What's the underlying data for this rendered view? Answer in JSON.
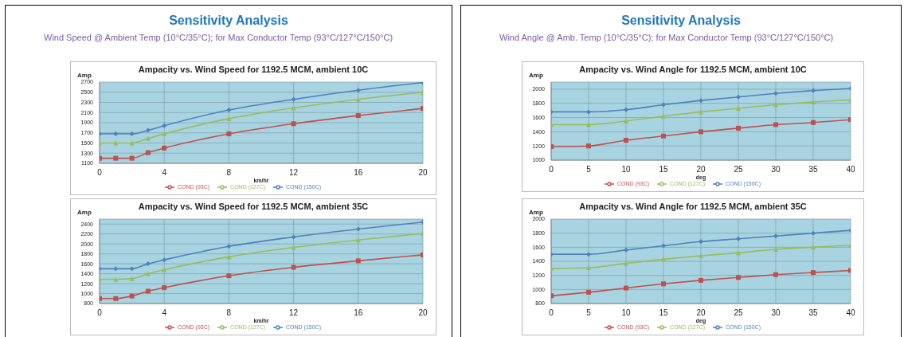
{
  "chart_data": [
    {
      "type": "line",
      "title": "Ampacity vs. Wind Speed for 1192.5 MCM, ambient 10C",
      "annotations": [
        "Sensitivity Analysis",
        "Wind Speed @ Ambient  Temp (10°C/35°C); for Max Conductor Temp (93°C/127°C/150°C)"
      ],
      "xlabel": "km/hr",
      "ylabel": "Amp",
      "x": [
        0,
        1,
        2,
        3,
        4,
        8,
        12,
        16,
        20
      ],
      "xlim": [
        0,
        20
      ],
      "xticks": [
        0,
        4,
        8,
        12,
        16,
        20
      ],
      "ylim": [
        1100,
        2700
      ],
      "yticks": [
        1100,
        1300,
        1500,
        1700,
        1900,
        2100,
        2300,
        2500,
        2700
      ],
      "grid": true,
      "legend": "bottom",
      "series": [
        {
          "name": "COND (93C)",
          "color": "#c0504d",
          "marker": "square",
          "values": [
            1200,
            1200,
            1200,
            1310,
            1400,
            1680,
            1880,
            2040,
            2180
          ]
        },
        {
          "name": "COND (127C)",
          "color": "#9bbb59",
          "marker": "triangle",
          "values": [
            1500,
            1500,
            1500,
            1590,
            1680,
            1980,
            2190,
            2360,
            2500
          ]
        },
        {
          "name": "COND (150C)",
          "color": "#4f81bd",
          "marker": "diamond",
          "values": [
            1680,
            1680,
            1680,
            1750,
            1840,
            2150,
            2360,
            2540,
            2690
          ]
        }
      ]
    },
    {
      "type": "line",
      "title": "Ampacity vs. Wind Speed for 1192.5 MCM, ambient 35C",
      "xlabel": "km/hr",
      "ylabel": "Amp",
      "x": [
        0,
        1,
        2,
        3,
        4,
        8,
        12,
        16,
        20
      ],
      "xlim": [
        0,
        20
      ],
      "xticks": [
        0,
        4,
        8,
        12,
        16,
        20
      ],
      "ylim": [
        800,
        2500
      ],
      "yticks": [
        800,
        1000,
        1200,
        1400,
        1600,
        1800,
        2000,
        2200,
        2400
      ],
      "grid": true,
      "legend": "bottom",
      "series": [
        {
          "name": "COND (93C)",
          "color": "#c0504d",
          "marker": "square",
          "values": [
            900,
            900,
            950,
            1050,
            1120,
            1360,
            1530,
            1660,
            1780
          ]
        },
        {
          "name": "COND (127C)",
          "color": "#9bbb59",
          "marker": "triangle",
          "values": [
            1290,
            1290,
            1300,
            1400,
            1480,
            1740,
            1930,
            2080,
            2210
          ]
        },
        {
          "name": "COND (150C)",
          "color": "#4f81bd",
          "marker": "diamond",
          "values": [
            1500,
            1500,
            1500,
            1600,
            1680,
            1950,
            2140,
            2300,
            2440
          ]
        }
      ]
    },
    {
      "type": "line",
      "title": "Ampacity vs. Wind Angle for 1192.5 MCM, ambient 10C",
      "annotations": [
        "Sensitivity Analysis",
        "Wind Angle @ Amb. Temp (10°C/35°C); for Max Conductor Temp (93°C/127°C/150°C)"
      ],
      "xlabel": "deg",
      "ylabel": "Amp",
      "x": [
        0,
        5,
        10,
        15,
        20,
        25,
        30,
        35,
        40
      ],
      "xlim": [
        0,
        40
      ],
      "xticks": [
        0,
        5,
        10,
        15,
        20,
        25,
        30,
        35,
        40
      ],
      "ylim": [
        1000,
        2100
      ],
      "yticks": [
        1000,
        1200,
        1400,
        1600,
        1800,
        2000
      ],
      "grid": true,
      "legend": "bottom",
      "series": [
        {
          "name": "COND (93C)",
          "color": "#c0504d",
          "marker": "square",
          "values": [
            1190,
            1200,
            1280,
            1340,
            1400,
            1450,
            1500,
            1530,
            1570
          ]
        },
        {
          "name": "COND (127C)",
          "color": "#9bbb59",
          "marker": "triangle",
          "values": [
            1500,
            1500,
            1550,
            1620,
            1680,
            1730,
            1780,
            1820,
            1850
          ]
        },
        {
          "name": "COND (150C)",
          "color": "#4f81bd",
          "marker": "diamond",
          "values": [
            1680,
            1680,
            1710,
            1780,
            1840,
            1890,
            1940,
            1980,
            2010
          ]
        }
      ]
    },
    {
      "type": "line",
      "title": "Ampacity vs. Wind Angle for 1192.5 MCM, ambient 35C",
      "xlabel": "deg",
      "ylabel": "Amp",
      "x": [
        0,
        5,
        10,
        15,
        20,
        25,
        30,
        35,
        40
      ],
      "xlim": [
        0,
        40
      ],
      "xticks": [
        0,
        5,
        10,
        15,
        20,
        25,
        30,
        35,
        40
      ],
      "ylim": [
        800,
        2000
      ],
      "yticks": [
        800,
        1000,
        1200,
        1400,
        1600,
        1800,
        2000
      ],
      "grid": true,
      "legend": "bottom",
      "series": [
        {
          "name": "COND (93C)",
          "color": "#c0504d",
          "marker": "square",
          "values": [
            910,
            960,
            1020,
            1080,
            1130,
            1170,
            1210,
            1240,
            1270
          ]
        },
        {
          "name": "COND (127C)",
          "color": "#9bbb59",
          "marker": "triangle",
          "values": [
            1300,
            1310,
            1370,
            1430,
            1480,
            1520,
            1570,
            1600,
            1630
          ]
        },
        {
          "name": "COND (150C)",
          "color": "#4f81bd",
          "marker": "diamond",
          "values": [
            1500,
            1500,
            1560,
            1620,
            1680,
            1720,
            1760,
            1800,
            1840
          ]
        }
      ]
    }
  ]
}
